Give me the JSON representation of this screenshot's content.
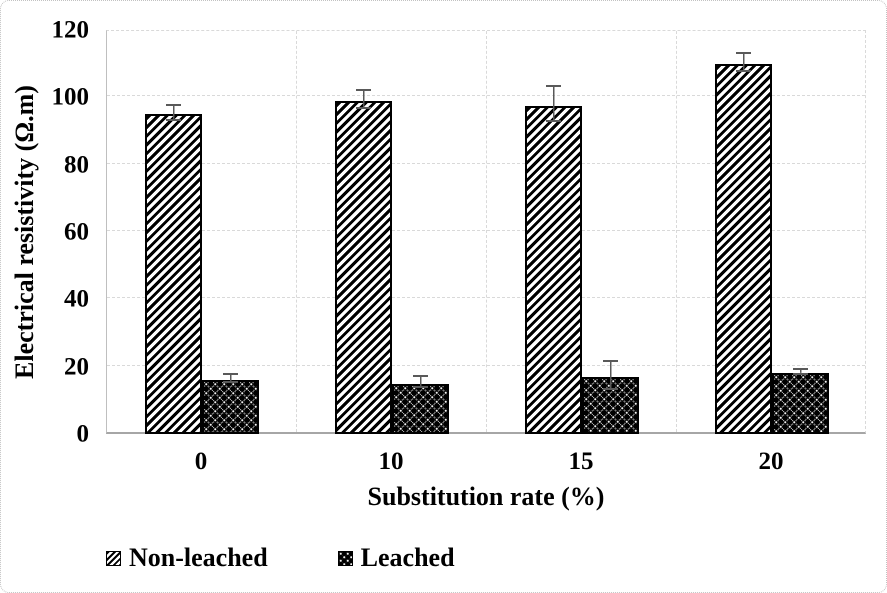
{
  "chart_data": {
    "type": "bar",
    "title": "",
    "xlabel": "Substitution rate (%)",
    "ylabel": "Electrical resistivity (Ω.m)",
    "categories": [
      "0",
      "10",
      "15",
      "20"
    ],
    "series": [
      {
        "name": "Non-leached",
        "pattern": "diagonal-hatch",
        "values": [
          95,
          99,
          97.5,
          110
        ],
        "errors": [
          2.5,
          3,
          5.5,
          3
        ]
      },
      {
        "name": "Leached",
        "pattern": "sphere-checker",
        "values": [
          16,
          15,
          17,
          18
        ],
        "errors": [
          1.5,
          2,
          4.5,
          1
        ]
      }
    ],
    "ylim": [
      0,
      120
    ],
    "yticks": [
      0,
      20,
      40,
      60,
      80,
      100,
      120
    ],
    "grid": {
      "horizontal": true,
      "vertical": true,
      "style": "dashed",
      "color": "#d9d9d9"
    },
    "legend_position": "bottom-left",
    "bar_outline_color": "#000000",
    "error_bar_color": "#595959"
  }
}
